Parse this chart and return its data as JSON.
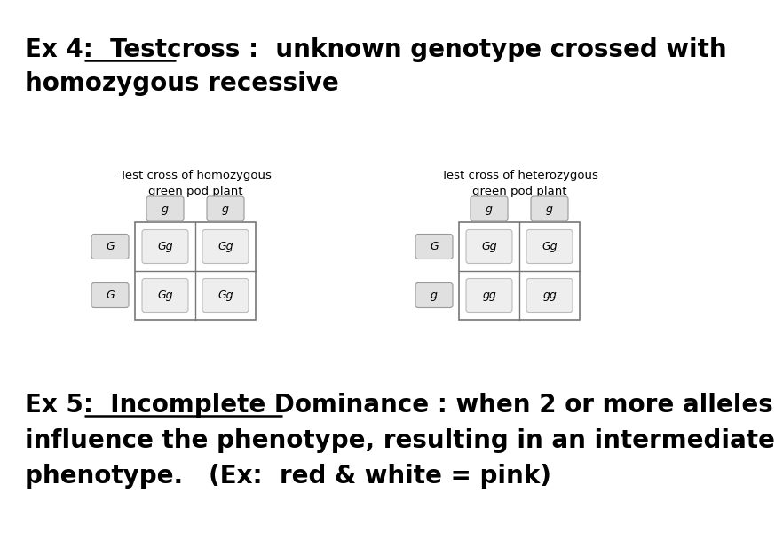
{
  "bg_color": "#ffffff",
  "title1_text": "Ex 4:  Testcross :  unknown genotype crossed with",
  "title2_text": "homozygous recessive",
  "ex5_line1": "Ex 5:  Incomplete Dominance : when 2 or more alleles",
  "ex5_line2": "influence the phenotype, resulting in an intermediate",
  "ex5_line3": "phenotype.   (Ex:  red & white = pink)",
  "table1_title_line1": "Test cross of homozygous",
  "table1_title_line2": "green pod plant",
  "table2_title_line1": "Test cross of heterozygous",
  "table2_title_line2": "green pod plant",
  "table1_col_labels": [
    "g",
    "g"
  ],
  "table1_row_labels": [
    "G",
    "G"
  ],
  "table1_cells": [
    [
      "Gg",
      "Gg"
    ],
    [
      "Gg",
      "Gg"
    ]
  ],
  "table2_col_labels": [
    "g",
    "g"
  ],
  "table2_row_labels": [
    "G",
    "g"
  ],
  "table2_cells": [
    [
      "Gg",
      "Gg"
    ],
    [
      "gg",
      "gg"
    ]
  ],
  "label_bg": "#e0e0e0",
  "cell_bg": "#eeeeee",
  "grid_color": "#777777",
  "text_color": "#000000",
  "title_fontsize": 20,
  "table_title_fontsize": 9.5,
  "cell_fontsize": 9
}
